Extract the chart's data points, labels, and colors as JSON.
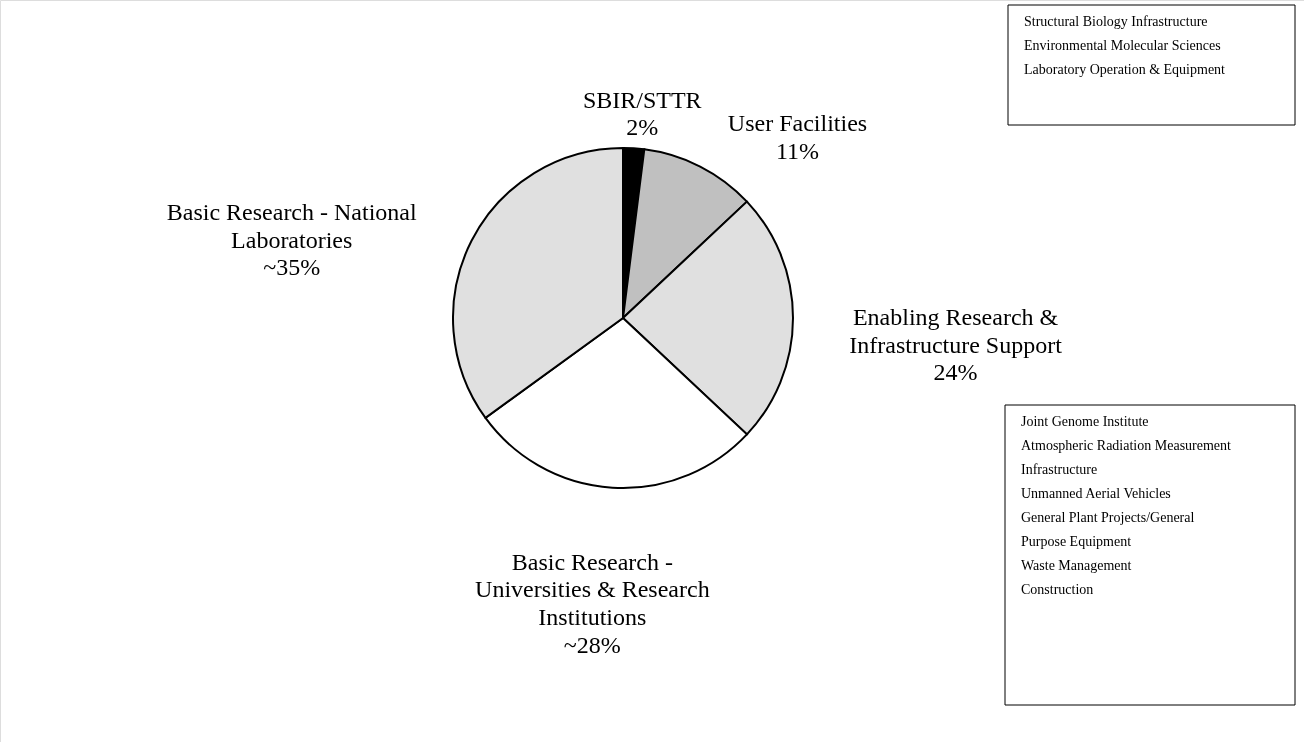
{
  "chart_data": {
    "type": "pie",
    "categories": [
      "SBIR/STTR",
      "User Facilities",
      "Enabling Research & Infrastructure Support",
      "Basic Research - Universities & Research Institutions",
      "Basic Research - National Laboratories"
    ],
    "values": [
      2,
      11,
      24,
      28,
      35
    ],
    "value_labels": [
      "2%",
      "11%",
      "24%",
      "~28%",
      "~35%"
    ],
    "colors": [
      "#000000",
      "#c0c0c0",
      "#e0e0e0",
      "#ffffff",
      "#e0e0e0"
    ],
    "annotations": [
      "Structural Biology Infrastructure\nEnvironmental Molecular Sciences Laboratory Operation & Equipment",
      "Joint Genome Institute\nAtmospheric Radiation Measurement Infrastructure\nUnmanned Aerial Vehicles\nGeneral Plant Projects/General Purpose Equipment\nWaste Management\nConstruction"
    ]
  }
}
